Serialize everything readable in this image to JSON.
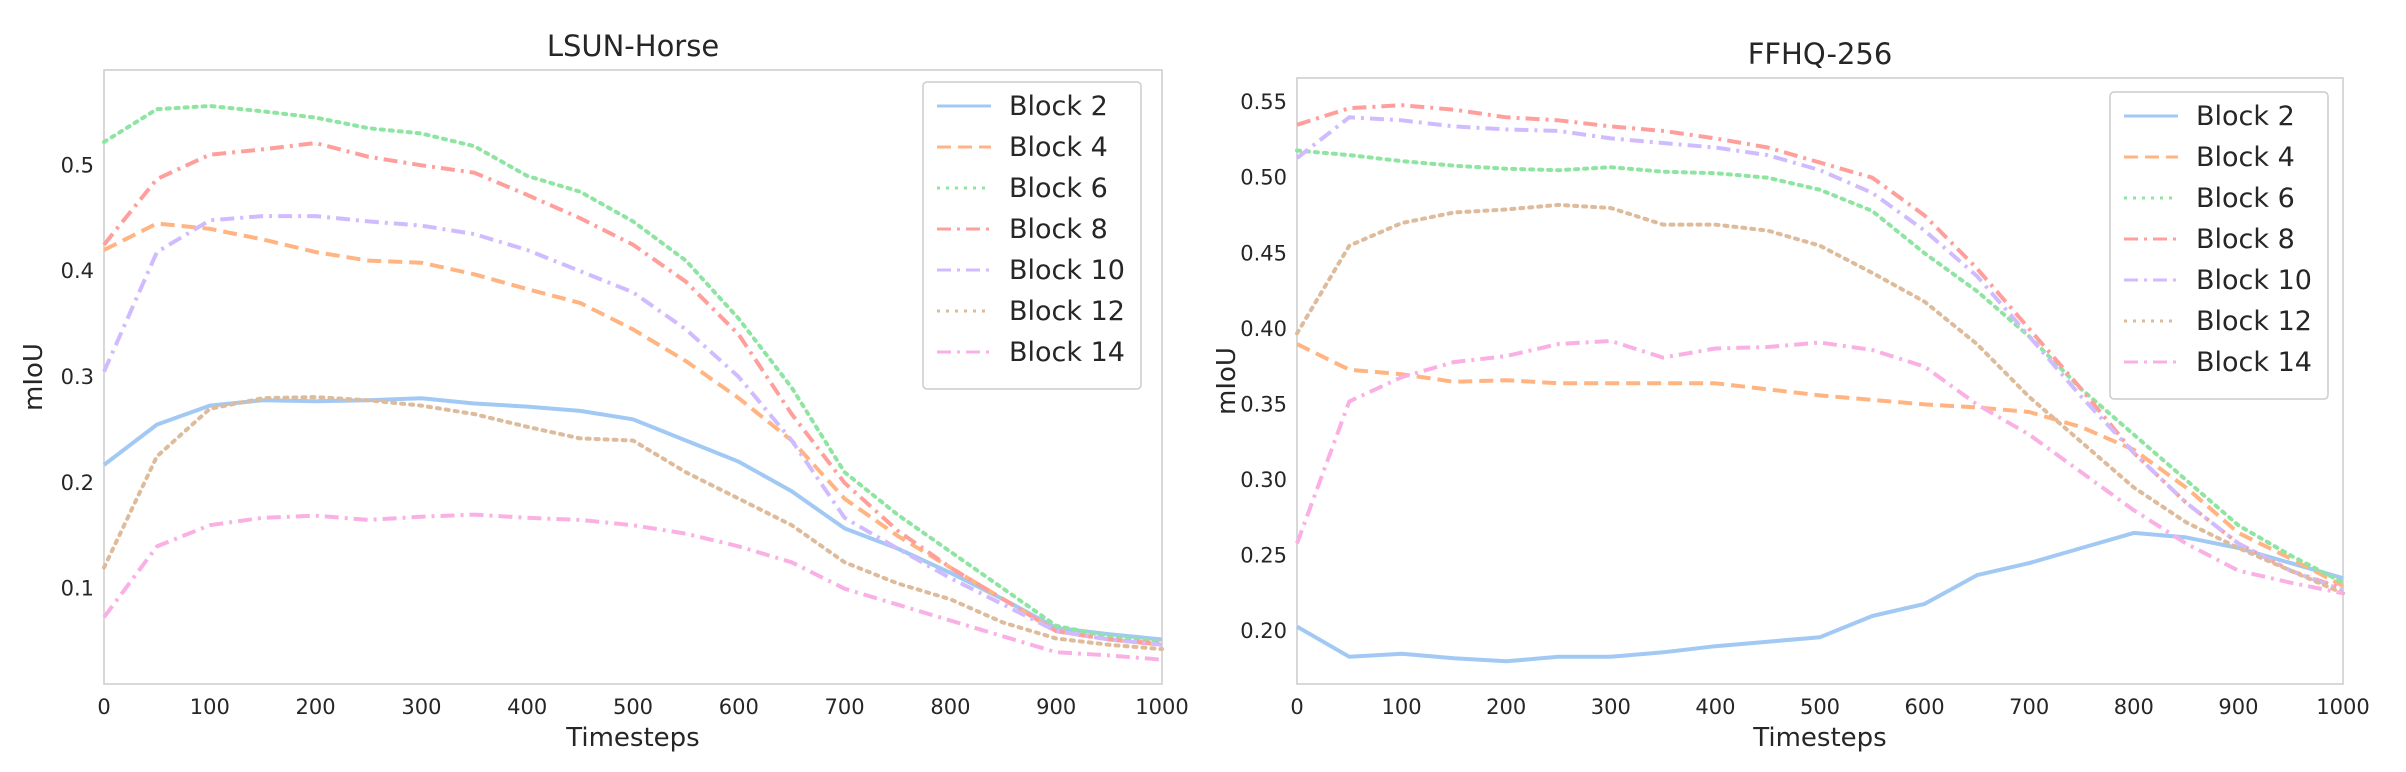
{
  "chart_data": [
    {
      "type": "line",
      "title": "LSUN-Horse",
      "xlabel": "Timesteps",
      "ylabel": "mIoU",
      "xlim": [
        0,
        1000
      ],
      "ylim": [
        0.01,
        0.59
      ],
      "xticks": [
        "0",
        "100",
        "200",
        "300",
        "400",
        "500",
        "600",
        "700",
        "800",
        "900",
        "1000"
      ],
      "yticks": [
        "0.1",
        "0.2",
        "0.3",
        "0.4",
        "0.5"
      ],
      "grid": false,
      "legend_position": "upper-right",
      "x": [
        0,
        50,
        100,
        150,
        200,
        250,
        300,
        350,
        400,
        450,
        500,
        550,
        600,
        650,
        700,
        750,
        800,
        850,
        900,
        950,
        1000
      ],
      "series": [
        {
          "name": "Block 2",
          "color": "#a1c9f4",
          "style": "solid",
          "values": [
            0.217,
            0.255,
            0.273,
            0.278,
            0.277,
            0.278,
            0.28,
            0.275,
            0.272,
            0.268,
            0.26,
            0.24,
            0.22,
            0.192,
            0.157,
            0.138,
            0.115,
            0.09,
            0.063,
            0.057,
            0.052
          ]
        },
        {
          "name": "Block 4",
          "color": "#ffb482",
          "style": "dashed",
          "values": [
            0.42,
            0.445,
            0.44,
            0.43,
            0.418,
            0.41,
            0.408,
            0.397,
            0.383,
            0.37,
            0.345,
            0.315,
            0.28,
            0.24,
            0.185,
            0.15,
            0.12,
            0.09,
            0.06,
            0.052,
            0.047
          ]
        },
        {
          "name": "Block 6",
          "color": "#8de5a1",
          "style": "dotted",
          "values": [
            0.522,
            0.553,
            0.556,
            0.551,
            0.545,
            0.535,
            0.53,
            0.518,
            0.49,
            0.475,
            0.447,
            0.41,
            0.355,
            0.29,
            0.21,
            0.17,
            0.135,
            0.1,
            0.065,
            0.055,
            0.05
          ]
        },
        {
          "name": "Block 8",
          "color": "#ff9f9b",
          "style": "dashdot",
          "values": [
            0.425,
            0.487,
            0.51,
            0.515,
            0.521,
            0.508,
            0.5,
            0.493,
            0.472,
            0.45,
            0.425,
            0.39,
            0.34,
            0.265,
            0.2,
            0.155,
            0.12,
            0.09,
            0.06,
            0.052,
            0.048
          ]
        },
        {
          "name": "Block 10",
          "color": "#d0bbff",
          "style": "dashdot",
          "values": [
            0.305,
            0.418,
            0.448,
            0.452,
            0.452,
            0.447,
            0.443,
            0.435,
            0.42,
            0.4,
            0.38,
            0.345,
            0.3,
            0.24,
            0.167,
            0.138,
            0.11,
            0.085,
            0.06,
            0.052,
            0.047
          ]
        },
        {
          "name": "Block 12",
          "color": "#debb9b",
          "style": "dotted",
          "values": [
            0.12,
            0.225,
            0.27,
            0.28,
            0.281,
            0.278,
            0.273,
            0.265,
            0.253,
            0.242,
            0.24,
            0.21,
            0.185,
            0.16,
            0.125,
            0.105,
            0.09,
            0.068,
            0.053,
            0.047,
            0.043
          ]
        },
        {
          "name": "Block 14",
          "color": "#fab0e4",
          "style": "dashdot",
          "values": [
            0.073,
            0.14,
            0.16,
            0.167,
            0.169,
            0.165,
            0.168,
            0.17,
            0.167,
            0.165,
            0.16,
            0.152,
            0.14,
            0.125,
            0.1,
            0.085,
            0.07,
            0.055,
            0.04,
            0.037,
            0.033
          ]
        }
      ]
    },
    {
      "type": "line",
      "title": "FFHQ-256",
      "xlabel": "Timesteps",
      "ylabel": "mIoU",
      "xlim": [
        0,
        1000
      ],
      "ylim": [
        0.165,
        0.566
      ],
      "xticks": [
        "0",
        "100",
        "200",
        "300",
        "400",
        "500",
        "600",
        "700",
        "800",
        "900",
        "1000"
      ],
      "yticks": [
        "0.20",
        "0.25",
        "0.30",
        "0.35",
        "0.40",
        "0.45",
        "0.50",
        "0.55"
      ],
      "grid": false,
      "legend_position": "upper-right",
      "x": [
        0,
        50,
        100,
        150,
        200,
        250,
        300,
        350,
        400,
        450,
        500,
        550,
        600,
        650,
        700,
        750,
        800,
        850,
        900,
        950,
        1000
      ],
      "series": [
        {
          "name": "Block 2",
          "color": "#a1c9f4",
          "style": "solid",
          "values": [
            0.203,
            0.183,
            0.185,
            0.182,
            0.18,
            0.183,
            0.183,
            0.186,
            0.19,
            0.193,
            0.196,
            0.21,
            0.218,
            0.237,
            0.245,
            0.255,
            0.265,
            0.262,
            0.255,
            0.245,
            0.235
          ]
        },
        {
          "name": "Block 4",
          "color": "#ffb482",
          "style": "dashed",
          "values": [
            0.39,
            0.373,
            0.37,
            0.365,
            0.366,
            0.364,
            0.364,
            0.364,
            0.364,
            0.36,
            0.356,
            0.353,
            0.35,
            0.348,
            0.345,
            0.335,
            0.32,
            0.295,
            0.265,
            0.248,
            0.23
          ]
        },
        {
          "name": "Block 6",
          "color": "#8de5a1",
          "style": "dotted",
          "values": [
            0.518,
            0.515,
            0.511,
            0.508,
            0.506,
            0.505,
            0.507,
            0.504,
            0.503,
            0.5,
            0.492,
            0.478,
            0.45,
            0.425,
            0.395,
            0.36,
            0.33,
            0.3,
            0.27,
            0.25,
            0.232
          ]
        },
        {
          "name": "Block 8",
          "color": "#ff9f9b",
          "style": "dashdot",
          "values": [
            0.535,
            0.546,
            0.548,
            0.545,
            0.54,
            0.538,
            0.534,
            0.531,
            0.526,
            0.52,
            0.51,
            0.5,
            0.475,
            0.44,
            0.4,
            0.36,
            0.318,
            0.285,
            0.258,
            0.24,
            0.228
          ]
        },
        {
          "name": "Block 10",
          "color": "#d0bbff",
          "style": "dashdot",
          "values": [
            0.513,
            0.54,
            0.538,
            0.534,
            0.532,
            0.531,
            0.526,
            0.523,
            0.52,
            0.515,
            0.505,
            0.49,
            0.465,
            0.435,
            0.395,
            0.355,
            0.318,
            0.285,
            0.258,
            0.24,
            0.227
          ]
        },
        {
          "name": "Block 12",
          "color": "#debb9b",
          "style": "dotted",
          "values": [
            0.397,
            0.455,
            0.47,
            0.477,
            0.479,
            0.482,
            0.48,
            0.469,
            0.469,
            0.465,
            0.455,
            0.437,
            0.418,
            0.39,
            0.355,
            0.325,
            0.295,
            0.272,
            0.255,
            0.24,
            0.225
          ]
        },
        {
          "name": "Block 14",
          "color": "#fab0e4",
          "style": "dashdot",
          "values": [
            0.258,
            0.352,
            0.368,
            0.378,
            0.382,
            0.39,
            0.392,
            0.381,
            0.387,
            0.388,
            0.391,
            0.386,
            0.375,
            0.35,
            0.33,
            0.305,
            0.28,
            0.258,
            0.24,
            0.232,
            0.225
          ]
        }
      ]
    }
  ]
}
